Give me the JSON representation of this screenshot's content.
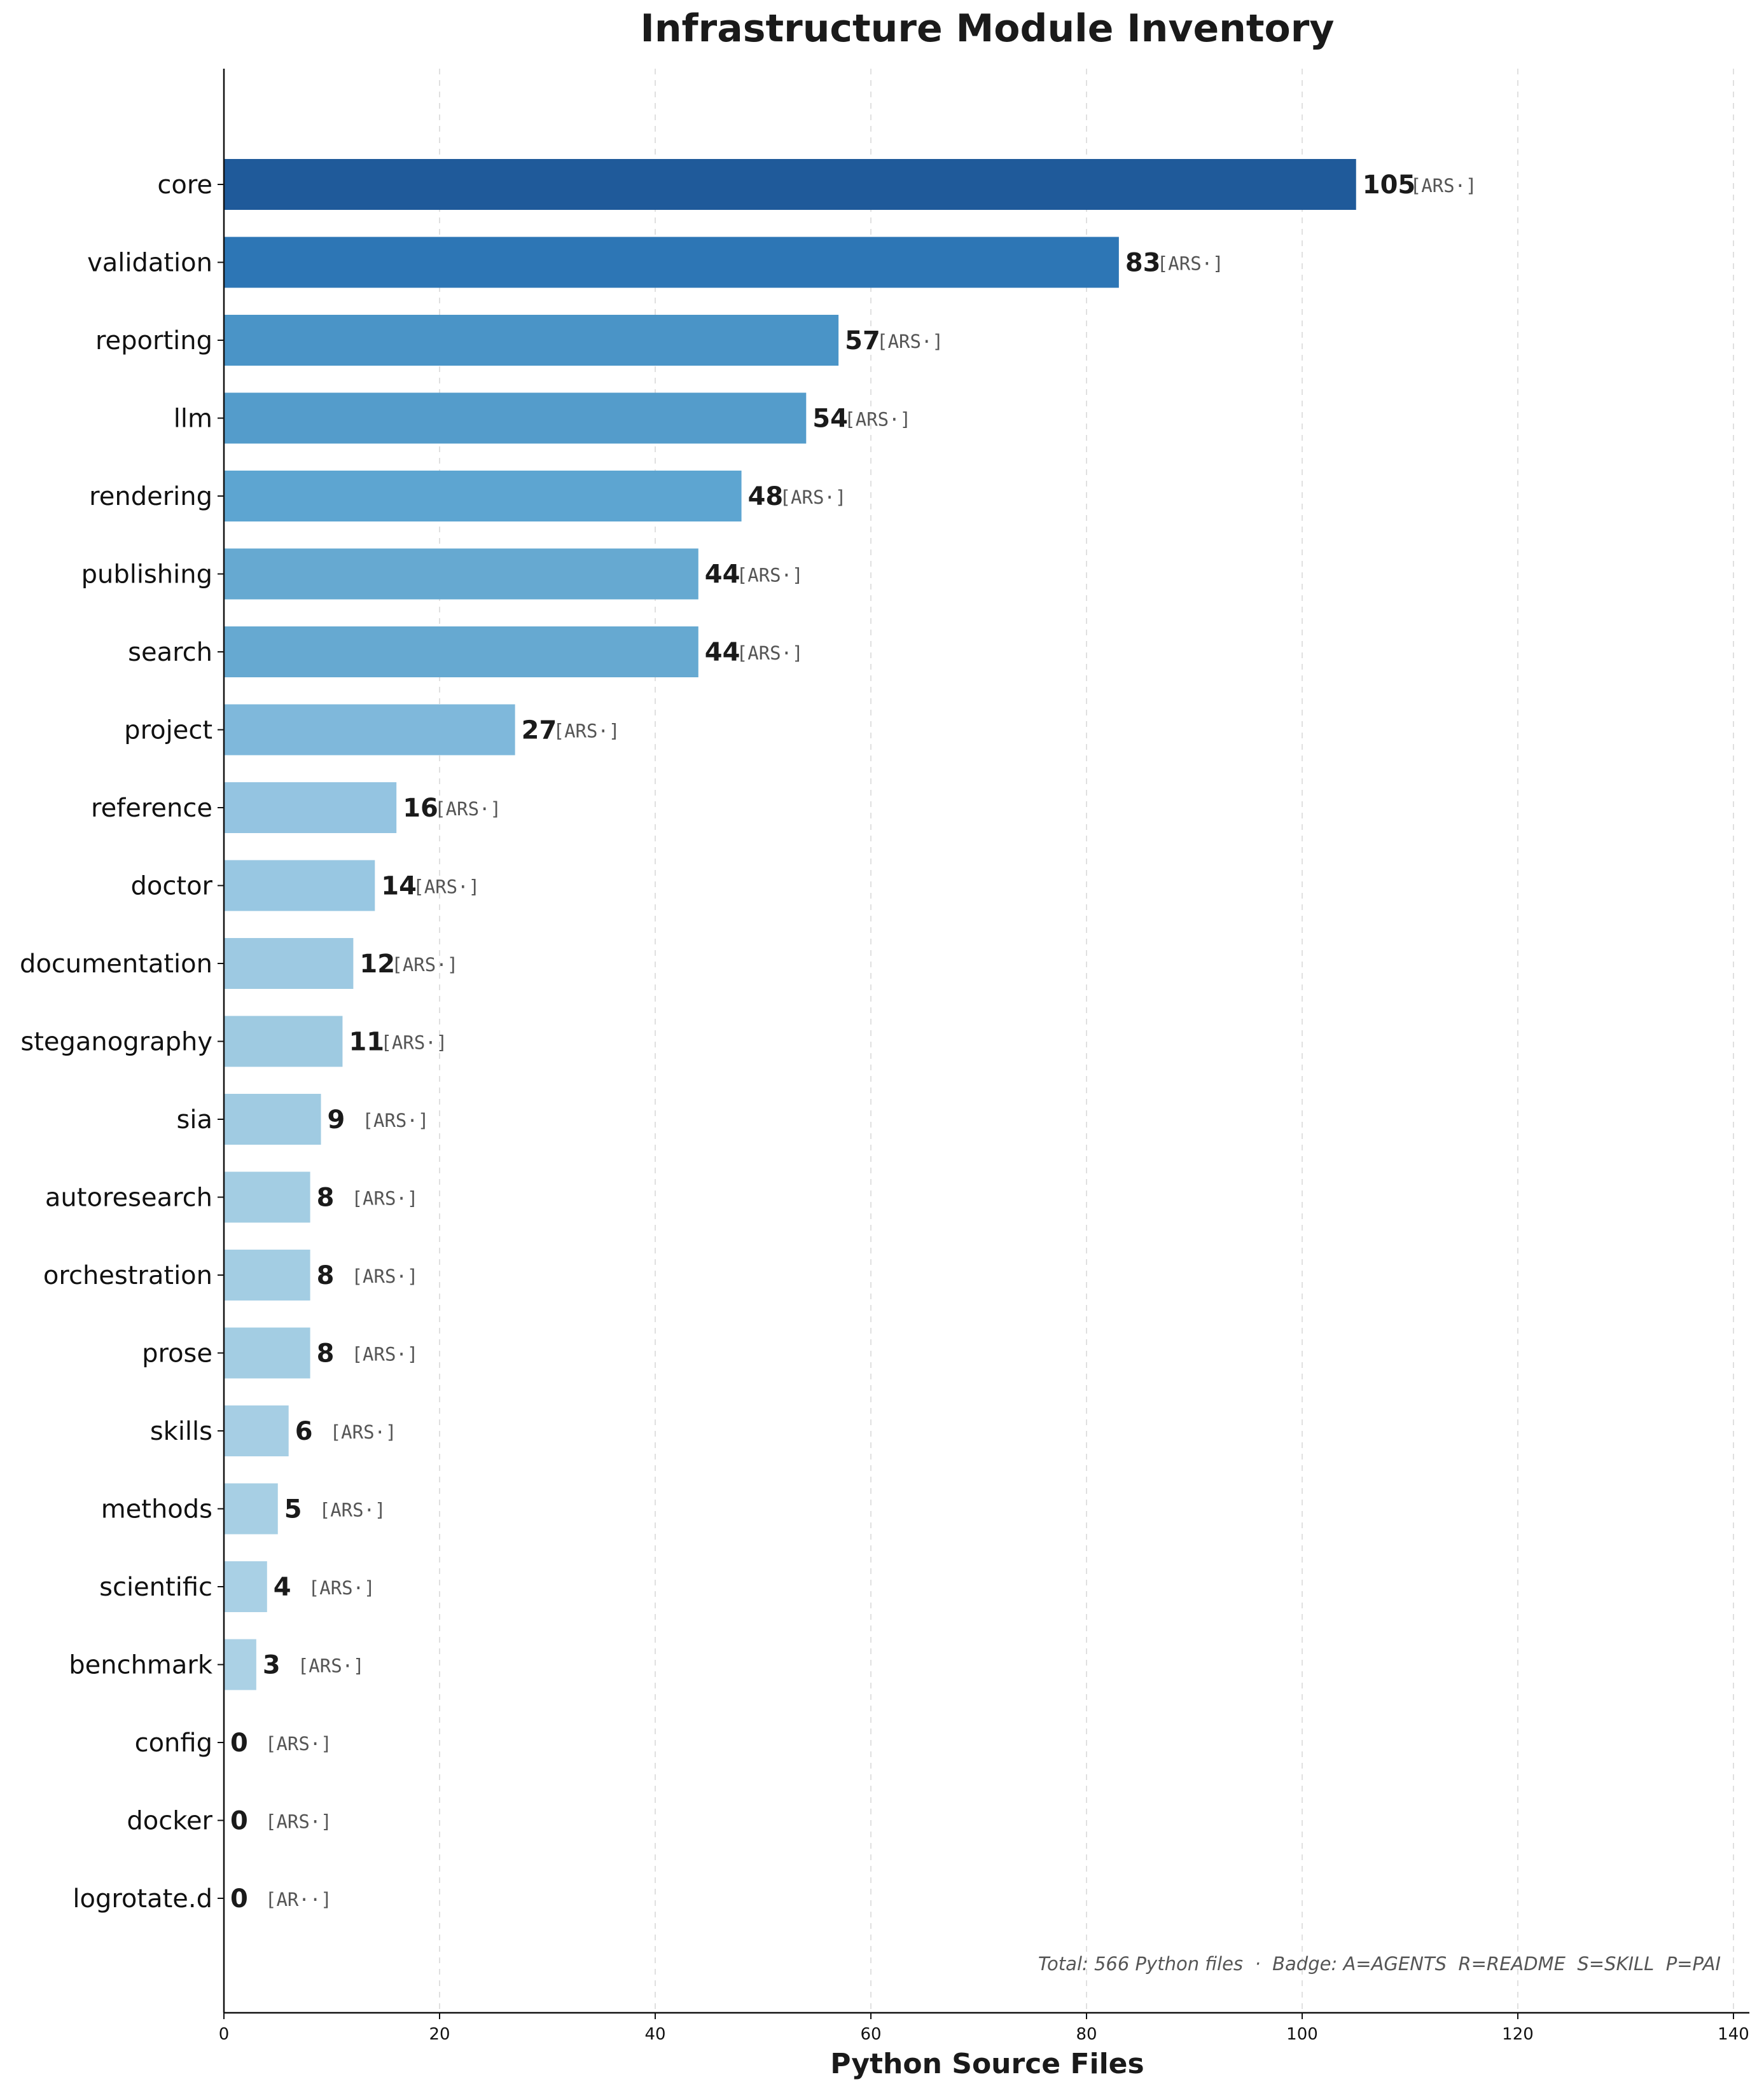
{
  "chart_data": {
    "type": "bar",
    "orientation": "horizontal",
    "title": "Infrastructure Module Inventory",
    "xlabel": "Python Source Files",
    "ylabel": "",
    "xlim": [
      0,
      140
    ],
    "x_ticks": [
      0,
      20,
      40,
      60,
      80,
      100,
      120,
      140
    ],
    "grid": "vertical dashed",
    "categories": [
      "core",
      "validation",
      "reporting",
      "llm",
      "rendering",
      "publishing",
      "search",
      "project",
      "reference",
      "doctor",
      "documentation",
      "steganography",
      "sia",
      "autoresearch",
      "orchestration",
      "prose",
      "skills",
      "methods",
      "scientific",
      "benchmark",
      "config",
      "docker",
      "logrotate.d"
    ],
    "values": [
      105,
      83,
      57,
      54,
      48,
      44,
      44,
      27,
      16,
      14,
      12,
      11,
      9,
      8,
      8,
      8,
      6,
      5,
      4,
      3,
      0,
      0,
      0
    ],
    "badges": [
      "[ARS·]",
      "[ARS·]",
      "[ARS·]",
      "[ARS·]",
      "[ARS·]",
      "[ARS·]",
      "[ARS·]",
      "[ARS·]",
      "[ARS·]",
      "[ARS·]",
      "[ARS·]",
      "[ARS·]",
      "[ARS·]",
      "[ARS·]",
      "[ARS·]",
      "[ARS·]",
      "[ARS·]",
      "[ARS·]",
      "[ARS·]",
      "[ARS·]",
      "[ARS·]",
      "[ARS·]",
      "[AR··]"
    ],
    "bar_colors": [
      "#1f5a9a",
      "#2d76b5",
      "#4a94c7",
      "#549ccb",
      "#5da5d1",
      "#66a9d1",
      "#66a9d1",
      "#7fb8db",
      "#94c4e1",
      "#98c7e2",
      "#9dc9e2",
      "#9ecae1",
      "#a0cbe2",
      "#a3cde3",
      "#a3cde3",
      "#a3cde3",
      "#a6cee4",
      "#a7cfe4",
      "#a9d0e5",
      "#abd1e5",
      "#acd2e6",
      "#acd2e6",
      "#acd2e6"
    ],
    "annotation": "Total: 566 Python files  ·  Badge: A=AGENTS  R=README  S=SKILL  P=PAI",
    "annotation_placement": "bottom-right"
  }
}
